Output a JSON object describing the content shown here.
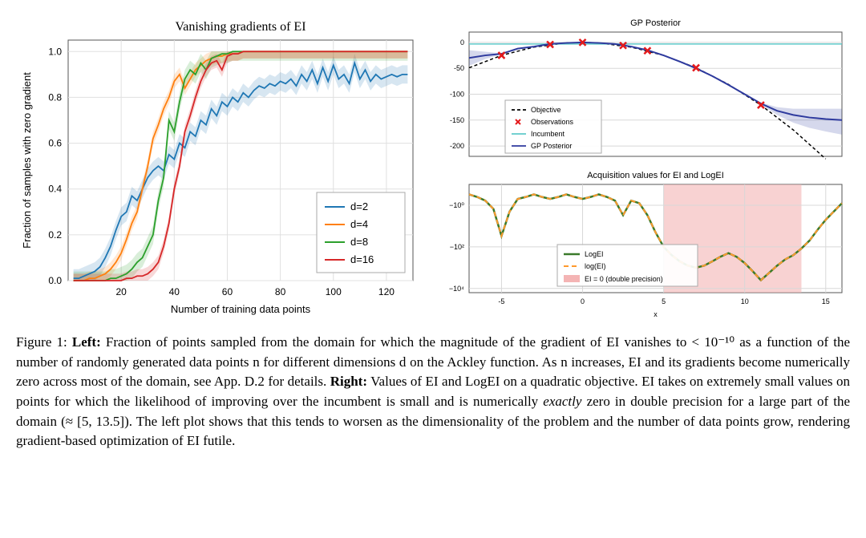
{
  "left_chart": {
    "type": "line",
    "title": "Vanishing gradients of EI",
    "title_fontsize": 16,
    "xlabel": "Number of training data points",
    "ylabel": "Fraction of samples with zero gradient",
    "label_fontsize": 13,
    "tick_fontsize": 12,
    "xlim": [
      0,
      130
    ],
    "ylim": [
      0,
      1.05
    ],
    "xticks": [
      20,
      40,
      60,
      80,
      100,
      120
    ],
    "yticks": [
      0.0,
      0.2,
      0.4,
      0.6,
      0.8,
      1.0
    ],
    "background_color": "#ffffff",
    "grid_color": "#e0e0e0",
    "legend_position": "lower-right",
    "series": [
      {
        "name": "d=2",
        "color": "#1f77b4",
        "x": [
          2,
          4,
          6,
          8,
          10,
          12,
          14,
          16,
          18,
          20,
          22,
          24,
          26,
          28,
          30,
          32,
          34,
          36,
          38,
          40,
          42,
          44,
          46,
          48,
          50,
          52,
          54,
          56,
          58,
          60,
          62,
          64,
          66,
          68,
          70,
          72,
          74,
          76,
          78,
          80,
          82,
          84,
          86,
          88,
          90,
          92,
          94,
          96,
          98,
          100,
          102,
          104,
          106,
          108,
          110,
          112,
          114,
          116,
          118,
          120,
          122,
          124,
          126,
          128
        ],
        "y": [
          0.01,
          0.01,
          0.02,
          0.03,
          0.04,
          0.06,
          0.1,
          0.15,
          0.22,
          0.28,
          0.3,
          0.37,
          0.35,
          0.4,
          0.45,
          0.48,
          0.5,
          0.48,
          0.55,
          0.53,
          0.6,
          0.58,
          0.65,
          0.63,
          0.7,
          0.68,
          0.75,
          0.72,
          0.78,
          0.76,
          0.8,
          0.78,
          0.82,
          0.8,
          0.83,
          0.85,
          0.84,
          0.86,
          0.85,
          0.87,
          0.86,
          0.88,
          0.85,
          0.9,
          0.87,
          0.92,
          0.86,
          0.93,
          0.87,
          0.94,
          0.88,
          0.9,
          0.86,
          0.95,
          0.88,
          0.92,
          0.87,
          0.9,
          0.88,
          0.89,
          0.9,
          0.89,
          0.9,
          0.9
        ],
        "band": 0.04
      },
      {
        "name": "d=4",
        "color": "#ff7f0e",
        "x": [
          2,
          4,
          6,
          8,
          10,
          12,
          14,
          16,
          18,
          20,
          22,
          24,
          26,
          28,
          30,
          32,
          34,
          36,
          38,
          40,
          42,
          44,
          46,
          48,
          50,
          52,
          54,
          56,
          58,
          60,
          62,
          64,
          66,
          68,
          70,
          72,
          74,
          76,
          78,
          80,
          82,
          84,
          86,
          88,
          90,
          92,
          94,
          96,
          98,
          100,
          102,
          104,
          106,
          108,
          110,
          112,
          114,
          116,
          118,
          120,
          122,
          124,
          126,
          128
        ],
        "y": [
          0.0,
          0.0,
          0.0,
          0.01,
          0.01,
          0.02,
          0.03,
          0.05,
          0.08,
          0.12,
          0.18,
          0.25,
          0.3,
          0.4,
          0.5,
          0.62,
          0.68,
          0.75,
          0.8,
          0.87,
          0.9,
          0.84,
          0.88,
          0.92,
          0.94,
          0.96,
          0.97,
          0.98,
          0.98,
          0.99,
          0.99,
          0.99,
          1.0,
          1.0,
          1.0,
          1.0,
          1.0,
          1.0,
          1.0,
          1.0,
          1.0,
          1.0,
          1.0,
          1.0,
          1.0,
          1.0,
          1.0,
          1.0,
          1.0,
          1.0,
          1.0,
          1.0,
          1.0,
          1.0,
          1.0,
          1.0,
          1.0,
          1.0,
          1.0,
          1.0,
          1.0,
          1.0,
          1.0,
          1.0
        ],
        "band": 0.03
      },
      {
        "name": "d=8",
        "color": "#2ca02c",
        "x": [
          2,
          4,
          6,
          8,
          10,
          12,
          14,
          16,
          18,
          20,
          22,
          24,
          26,
          28,
          30,
          32,
          34,
          36,
          38,
          40,
          42,
          44,
          46,
          48,
          50,
          52,
          54,
          56,
          58,
          60,
          62,
          64,
          66,
          68,
          70,
          72,
          74,
          76,
          78,
          80,
          82,
          84,
          86,
          88,
          90,
          92,
          94,
          96,
          98,
          100,
          102,
          104,
          106,
          108,
          110,
          112,
          114,
          116,
          118,
          120,
          122,
          124,
          126,
          128
        ],
        "y": [
          0.0,
          0.0,
          0.0,
          0.0,
          0.0,
          0.0,
          0.0,
          0.01,
          0.01,
          0.02,
          0.03,
          0.05,
          0.08,
          0.1,
          0.15,
          0.2,
          0.35,
          0.45,
          0.7,
          0.65,
          0.78,
          0.88,
          0.92,
          0.9,
          0.95,
          0.92,
          0.97,
          0.98,
          0.99,
          0.99,
          1.0,
          1.0,
          1.0,
          1.0,
          1.0,
          1.0,
          1.0,
          1.0,
          1.0,
          1.0,
          1.0,
          1.0,
          1.0,
          1.0,
          1.0,
          1.0,
          1.0,
          1.0,
          1.0,
          1.0,
          1.0,
          1.0,
          1.0,
          1.0,
          1.0,
          1.0,
          1.0,
          1.0,
          1.0,
          1.0,
          1.0,
          1.0,
          1.0,
          1.0
        ],
        "band": 0.04
      },
      {
        "name": "d=16",
        "color": "#d62728",
        "x": [
          2,
          4,
          6,
          8,
          10,
          12,
          14,
          16,
          18,
          20,
          22,
          24,
          26,
          28,
          30,
          32,
          34,
          36,
          38,
          40,
          42,
          44,
          46,
          48,
          50,
          52,
          54,
          56,
          58,
          60,
          62,
          64,
          66,
          68,
          70,
          72,
          74,
          76,
          78,
          80,
          82,
          84,
          86,
          88,
          90,
          92,
          94,
          96,
          98,
          100,
          102,
          104,
          106,
          108,
          110,
          112,
          114,
          116,
          118,
          120,
          122,
          124,
          126,
          128
        ],
        "y": [
          0.0,
          0.0,
          0.0,
          0.0,
          0.0,
          0.0,
          0.0,
          0.0,
          0.0,
          0.0,
          0.01,
          0.01,
          0.02,
          0.02,
          0.03,
          0.05,
          0.08,
          0.15,
          0.25,
          0.4,
          0.5,
          0.65,
          0.72,
          0.8,
          0.87,
          0.92,
          0.95,
          0.96,
          0.92,
          0.98,
          0.99,
          0.99,
          1.0,
          1.0,
          1.0,
          1.0,
          1.0,
          1.0,
          1.0,
          1.0,
          1.0,
          1.0,
          1.0,
          1.0,
          1.0,
          1.0,
          1.0,
          1.0,
          1.0,
          1.0,
          1.0,
          1.0,
          1.0,
          1.0,
          1.0,
          1.0,
          1.0,
          1.0,
          1.0,
          1.0,
          1.0,
          1.0,
          1.0,
          1.0
        ],
        "band": 0.03
      }
    ]
  },
  "right_top_chart": {
    "type": "line",
    "title": "GP Posterior",
    "title_fontsize": 11,
    "xlim": [
      -7,
      16
    ],
    "ylim": [
      -220,
      20
    ],
    "yticks": [
      0,
      -50,
      -100,
      -150,
      -200
    ],
    "grid_color": "#d8d8d8",
    "background_color": "#ffffff",
    "legend_position": "lower-left",
    "tick_fontsize": 9,
    "series": [
      {
        "name": "Objective",
        "color": "#000000",
        "dash": "4,3",
        "x": [
          -7,
          -5,
          -3,
          -1,
          0,
          1,
          3,
          5,
          7,
          9,
          11,
          13,
          15
        ],
        "y": [
          -49,
          -25,
          -9,
          -1,
          0,
          -1,
          -9,
          -25,
          -49,
          -81,
          -121,
          -169,
          -225
        ]
      },
      {
        "name": "Incumbent",
        "color": "#5fc9c9",
        "x": [
          -7,
          16
        ],
        "y": [
          -3,
          -3
        ]
      },
      {
        "name": "GP Posterior",
        "color": "#2e3a9e",
        "x": [
          -7,
          -6,
          -5,
          -4,
          -3,
          -2,
          -1,
          0,
          1,
          2,
          3,
          4,
          5,
          6,
          7,
          8,
          9,
          10,
          11,
          12,
          13,
          14,
          15,
          16
        ],
        "y": [
          -30,
          -25,
          -22,
          -12,
          -8,
          -3,
          -1,
          0,
          -1,
          -3,
          -8,
          -15,
          -25,
          -37,
          -50,
          -65,
          -82,
          -100,
          -118,
          -132,
          -140,
          -145,
          -148,
          -150
        ],
        "band_upper": [
          -15,
          -18,
          -21,
          -11,
          -8,
          -3,
          -1,
          0,
          -1,
          -3,
          -8,
          -15,
          -25,
          -37,
          -50,
          -65,
          -82,
          -100,
          -116,
          -125,
          -128,
          -128,
          -128,
          -128
        ],
        "band_lower": [
          -45,
          -32,
          -23,
          -13,
          -8,
          -3,
          -1,
          0,
          -1,
          -3,
          -8,
          -15,
          -25,
          -37,
          -50,
          -65,
          -82,
          -100,
          -120,
          -140,
          -155,
          -165,
          -172,
          -178
        ]
      }
    ],
    "observations": {
      "name": "Observations",
      "color": "#e41a1c",
      "marker": "x",
      "x": [
        -5,
        -2,
        0,
        2.5,
        4,
        7,
        11
      ],
      "y": [
        -25,
        -4,
        0,
        -6,
        -16,
        -49,
        -121
      ]
    }
  },
  "right_bottom_chart": {
    "type": "line",
    "title": "Acquisition values for EI and LogEI",
    "title_fontsize": 11,
    "xlabel": "x",
    "xlim": [
      -7,
      16
    ],
    "ylim": [
      -12000,
      0
    ],
    "yscale": "symlog",
    "yticks_labels": [
      "−10⁰",
      "−10²",
      "−10⁴"
    ],
    "yticks_pos": [
      -1,
      -100,
      -10000
    ],
    "xticks": [
      -5,
      0,
      5,
      10,
      15
    ],
    "grid_color": "#d8d8d8",
    "background_color": "#ffffff",
    "tick_fontsize": 9,
    "ei_zero_region": {
      "xmin": 5,
      "xmax": 13.5,
      "color": "#f4b4b4",
      "label": "EI = 0 (double precision)"
    },
    "series": [
      {
        "name": "LogEI",
        "color": "#3a7a2a",
        "width": 2.5,
        "x": [
          -7,
          -6.5,
          -6,
          -5.5,
          -5,
          -4.5,
          -4,
          -3.5,
          -3,
          -2.5,
          -2,
          -1.5,
          -1,
          -0.5,
          0,
          0.5,
          1,
          1.5,
          2,
          2.5,
          3,
          3.5,
          4,
          4.5,
          5,
          5.5,
          6,
          6.5,
          7,
          7.5,
          8,
          8.5,
          9,
          9.5,
          10,
          10.5,
          11,
          11.5,
          12,
          12.5,
          13,
          13.5,
          14,
          14.5,
          15,
          15.5,
          16
        ],
        "y": [
          -0.3,
          -0.4,
          -0.6,
          -1.5,
          -30,
          -2,
          -0.5,
          -0.4,
          -0.3,
          -0.4,
          -0.5,
          -0.4,
          -0.3,
          -0.4,
          -0.5,
          -0.4,
          -0.3,
          -0.4,
          -0.6,
          -3,
          -0.6,
          -0.8,
          -3,
          -20,
          -100,
          -250,
          -500,
          -800,
          -1000,
          -800,
          -500,
          -300,
          -200,
          -300,
          -600,
          -1500,
          -4000,
          -1800,
          -800,
          -400,
          -250,
          -120,
          -50,
          -15,
          -5,
          -2,
          -0.8
        ]
      },
      {
        "name": "log(EI)",
        "color": "#ff9a2e",
        "dash": "6,4",
        "width": 2,
        "x": [
          -7,
          -6.5,
          -6,
          -5.5,
          -5,
          -4.5,
          -4,
          -3.5,
          -3,
          -2.5,
          -2,
          -1.5,
          -1,
          -0.5,
          0,
          0.5,
          1,
          1.5,
          2,
          2.5,
          3,
          3.5,
          4,
          4.5,
          5,
          5.5,
          6,
          6.5,
          7,
          7.5,
          8,
          8.5,
          9,
          9.5,
          10,
          10.5,
          11,
          11.5,
          12,
          12.5,
          13,
          13.5,
          14,
          14.5,
          15,
          15.5,
          16
        ],
        "y": [
          -0.3,
          -0.4,
          -0.6,
          -1.5,
          -30,
          -2,
          -0.5,
          -0.4,
          -0.3,
          -0.4,
          -0.5,
          -0.4,
          -0.3,
          -0.4,
          -0.5,
          -0.4,
          -0.3,
          -0.4,
          -0.6,
          -3,
          -0.6,
          -0.8,
          -3,
          -20,
          -100,
          -250,
          -500,
          -800,
          -1000,
          -800,
          -500,
          -300,
          -200,
          -300,
          -600,
          -1500,
          -4000,
          -1800,
          -800,
          -400,
          -250,
          -120,
          -50,
          -15,
          -5,
          -2,
          -0.8
        ]
      }
    ]
  },
  "caption": {
    "prefix": "Figure 1: ",
    "left_label": "Left:",
    "left_text": " Fraction of points sampled from the domain for which the magnitude of the gradient of EI vanishes to < 10⁻¹⁰ as a function of the number of randomly generated data points n for different dimensions d on the Ackley function. As n increases, EI and its gradients become numerically zero across most of the domain, see App. D.2 for details. ",
    "right_label": "Right:",
    "right_text_1": " Values of EI and LogEI on a quadratic objective. EI takes on extremely small values on points for which the likelihood of improving over the incumbent is small and is numerically ",
    "italic": "exactly",
    "right_text_2": " zero in double precision for a large part of the domain (≈ [5, 13.5]). The left plot shows that this tends to worsen as the dimensionality of the problem and the number of data points grow, rendering gradient-based optimization of EI futile."
  }
}
